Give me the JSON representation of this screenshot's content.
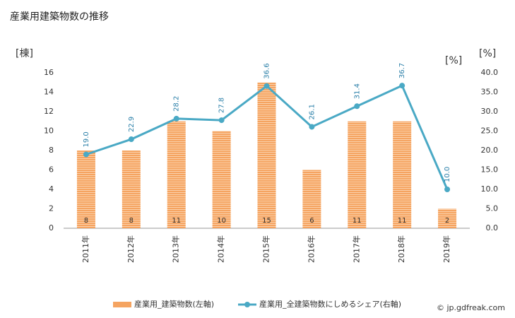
{
  "chart_data": {
    "type": "bar-line",
    "title": "産業用建築物数の推移",
    "y_label": "[棟]",
    "y2_label": "[%]",
    "categories": [
      "2011年",
      "2012年",
      "2013年",
      "2014年",
      "2015年",
      "2016年",
      "2017年",
      "2018年",
      "2019年"
    ],
    "series": [
      {
        "name": "産業用_建築物数(左軸)",
        "type": "bar",
        "color": "#f5a461",
        "values": [
          8,
          8,
          11,
          10,
          15,
          6,
          11,
          11,
          2
        ]
      },
      {
        "name": "産業用_全建築物数にしめるシェア(右軸)",
        "type": "line",
        "axis": "y2",
        "color": "#4aa9c5",
        "values": [
          19.0,
          22.9,
          28.2,
          27.8,
          36.6,
          26.1,
          31.4,
          36.7,
          10.0
        ],
        "value_labels": [
          "19.0",
          "22.9",
          "28.2",
          "27.8",
          "36.6",
          "26.1",
          "31.4",
          "36.7",
          "10.0"
        ]
      }
    ],
    "ylim": [
      0,
      16
    ],
    "yticks": [
      0,
      2,
      4,
      6,
      8,
      10,
      12,
      14,
      16
    ],
    "y2lim": [
      0,
      40
    ],
    "y2ticks": [
      {
        "value": 0,
        "label": "0.0"
      },
      {
        "value": 5,
        "label": "5.0"
      },
      {
        "value": 10,
        "label": "10.0"
      },
      {
        "value": 15,
        "label": "15.0"
      },
      {
        "value": 20,
        "label": "20.0"
      },
      {
        "value": 25,
        "label": "25.0"
      },
      {
        "value": 30,
        "label": "30.0"
      },
      {
        "value": 35,
        "label": "35.0"
      },
      {
        "value": 40,
        "label": "40.0"
      }
    ],
    "grid": false,
    "watermark": "© jp.gdfreak.com"
  }
}
